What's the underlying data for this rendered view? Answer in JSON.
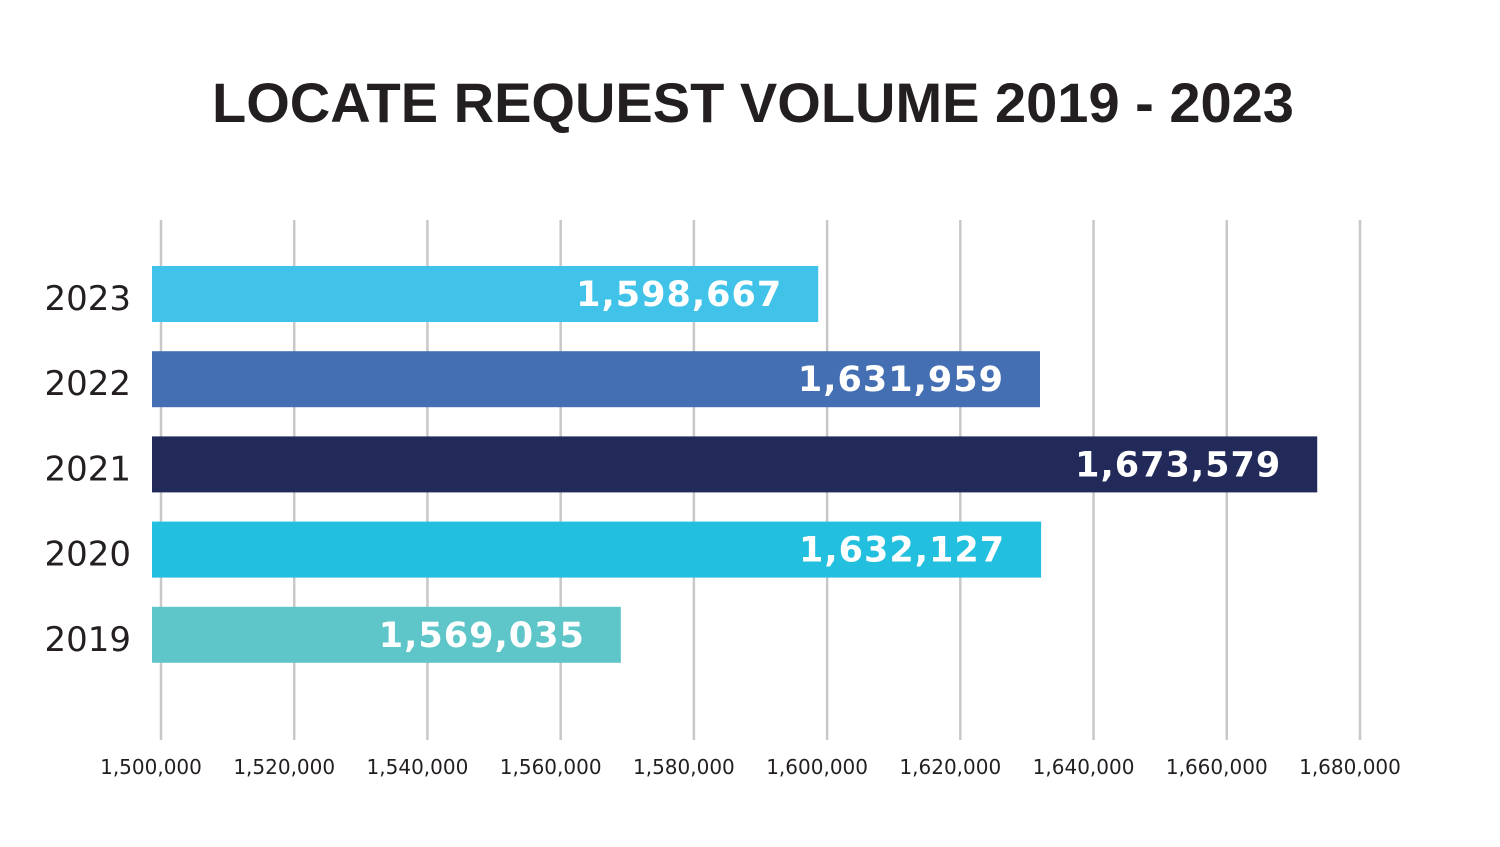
{
  "chart_data": {
    "type": "bar",
    "orientation": "horizontal",
    "title": "LOCATE REQUEST VOLUME 2019 - 2023",
    "xlabel": "",
    "ylabel": "",
    "categories": [
      "2023",
      "2022",
      "2021",
      "2020",
      "2019"
    ],
    "values": [
      1598667,
      1631959,
      1673579,
      1632127,
      1569035
    ],
    "value_labels": [
      "1,598,667",
      "1,631,959",
      "1,673,579",
      "1,632,127",
      "1,569,035"
    ],
    "colors": [
      "#41c3e9",
      "#446fb3",
      "#212a58",
      "#22bfde",
      "#5ec6c8"
    ],
    "xlim": [
      1500000,
      1680000
    ],
    "x_ticks": [
      1500000,
      1520000,
      1540000,
      1560000,
      1580000,
      1600000,
      1620000,
      1640000,
      1660000,
      1680000
    ],
    "x_tick_labels": [
      "1,500,000",
      "1,520,000",
      "1,540,000",
      "1,560,000",
      "1,580,000",
      "1,600,000",
      "1,620,000",
      "1,640,000",
      "1,660,000",
      "1,680,000"
    ],
    "grid": true,
    "legend": "none"
  }
}
